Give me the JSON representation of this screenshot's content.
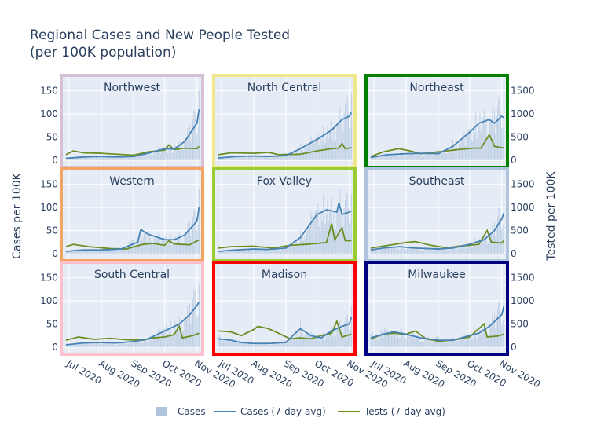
{
  "chart_data": {
    "type": "bar+line",
    "title": [
      "Regional Cases and New People Tested",
      "(per 100K population)"
    ],
    "ylabel_left": "Cases per 100K",
    "ylabel_right": "Tested per 100K",
    "y_left": {
      "range": [
        -12,
        180
      ],
      "ticks": [
        0,
        50,
        100,
        150
      ]
    },
    "y_right": {
      "range": [
        -120,
        1800
      ],
      "ticks": [
        0,
        500,
        1000,
        1500
      ]
    },
    "x": {
      "start": "2020-06-25",
      "end": "2020-11-05",
      "ticks": [
        {
          "date": "2020-07-01",
          "label": "Jul 2020"
        },
        {
          "date": "2020-08-01",
          "label": "Aug 2020"
        },
        {
          "date": "2020-09-01",
          "label": "Sep 2020"
        },
        {
          "date": "2020-10-01",
          "label": "Oct 2020"
        },
        {
          "date": "2020-11-01",
          "label": "Nov 2020"
        }
      ]
    },
    "grid": true,
    "legend": {
      "placement": "bottom",
      "items": [
        {
          "name": "Cases",
          "color": "#b0c4de",
          "kind": "bar"
        },
        {
          "name": "Cases (7-day avg)",
          "color": "#4682b4",
          "kind": "line"
        },
        {
          "name": "Tests (7-day avg)",
          "color": "#6b8e23",
          "kind": "line"
        }
      ]
    },
    "regions": [
      {
        "name": "Northwest",
        "border": "#d8bfd8",
        "cases": [
          [
            "2020-06-28",
            4
          ],
          [
            "2020-07-15",
            7
          ],
          [
            "2020-08-01",
            8
          ],
          [
            "2020-08-15",
            7
          ],
          [
            "2020-09-01",
            8
          ],
          [
            "2020-09-15",
            15
          ],
          [
            "2020-10-01",
            25
          ],
          [
            "2020-10-10",
            24
          ],
          [
            "2020-10-20",
            40
          ],
          [
            "2020-11-01",
            80
          ],
          [
            "2020-11-03",
            110
          ]
        ],
        "tests": [
          [
            "2020-06-28",
            120
          ],
          [
            "2020-07-05",
            200
          ],
          [
            "2020-07-15",
            160
          ],
          [
            "2020-08-01",
            150
          ],
          [
            "2020-08-15",
            130
          ],
          [
            "2020-09-01",
            110
          ],
          [
            "2020-09-15",
            180
          ],
          [
            "2020-10-01",
            220
          ],
          [
            "2020-10-05",
            330
          ],
          [
            "2020-10-10",
            230
          ],
          [
            "2020-10-20",
            260
          ],
          [
            "2020-11-01",
            250
          ],
          [
            "2020-11-03",
            300
          ]
        ]
      },
      {
        "name": "North Central",
        "border": "#f0e68c",
        "cases": [
          [
            "2020-06-28",
            5
          ],
          [
            "2020-07-15",
            8
          ],
          [
            "2020-08-01",
            9
          ],
          [
            "2020-08-15",
            8
          ],
          [
            "2020-09-01",
            10
          ],
          [
            "2020-09-15",
            25
          ],
          [
            "2020-10-01",
            45
          ],
          [
            "2020-10-15",
            65
          ],
          [
            "2020-10-25",
            88
          ],
          [
            "2020-11-01",
            95
          ],
          [
            "2020-11-03",
            103
          ]
        ],
        "tests": [
          [
            "2020-06-28",
            120
          ],
          [
            "2020-07-10",
            160
          ],
          [
            "2020-08-01",
            150
          ],
          [
            "2020-08-15",
            170
          ],
          [
            "2020-08-25",
            120
          ],
          [
            "2020-09-15",
            130
          ],
          [
            "2020-10-01",
            200
          ],
          [
            "2020-10-15",
            250
          ],
          [
            "2020-10-22",
            260
          ],
          [
            "2020-10-25",
            360
          ],
          [
            "2020-10-28",
            250
          ],
          [
            "2020-11-03",
            270
          ]
        ]
      },
      {
        "name": "Northeast",
        "border": "#008000",
        "cases": [
          [
            "2020-06-28",
            6
          ],
          [
            "2020-07-15",
            12
          ],
          [
            "2020-08-01",
            14
          ],
          [
            "2020-08-15",
            15
          ],
          [
            "2020-09-01",
            14
          ],
          [
            "2020-09-15",
            30
          ],
          [
            "2020-10-01",
            60
          ],
          [
            "2020-10-10",
            80
          ],
          [
            "2020-10-20",
            88
          ],
          [
            "2020-10-25",
            80
          ],
          [
            "2020-11-01",
            95
          ],
          [
            "2020-11-03",
            92
          ]
        ],
        "tests": [
          [
            "2020-06-28",
            80
          ],
          [
            "2020-07-10",
            180
          ],
          [
            "2020-07-25",
            250
          ],
          [
            "2020-08-05",
            200
          ],
          [
            "2020-08-15",
            140
          ],
          [
            "2020-09-01",
            180
          ],
          [
            "2020-09-20",
            230
          ],
          [
            "2020-10-05",
            260
          ],
          [
            "2020-10-12",
            260
          ],
          [
            "2020-10-20",
            550
          ],
          [
            "2020-10-25",
            300
          ],
          [
            "2020-11-01",
            270
          ],
          [
            "2020-11-03",
            270
          ]
        ]
      },
      {
        "name": "Western",
        "border": "#f4a460",
        "cases": [
          [
            "2020-06-28",
            5
          ],
          [
            "2020-07-15",
            8
          ],
          [
            "2020-08-01",
            8
          ],
          [
            "2020-08-20",
            10
          ],
          [
            "2020-09-05",
            25
          ],
          [
            "2020-09-08",
            52
          ],
          [
            "2020-09-15",
            42
          ],
          [
            "2020-10-01",
            30
          ],
          [
            "2020-10-10",
            30
          ],
          [
            "2020-10-20",
            40
          ],
          [
            "2020-11-01",
            70
          ],
          [
            "2020-11-03",
            100
          ]
        ],
        "tests": [
          [
            "2020-06-28",
            150
          ],
          [
            "2020-07-05",
            200
          ],
          [
            "2020-07-20",
            150
          ],
          [
            "2020-08-10",
            110
          ],
          [
            "2020-08-25",
            100
          ],
          [
            "2020-09-10",
            200
          ],
          [
            "2020-09-20",
            220
          ],
          [
            "2020-10-01",
            180
          ],
          [
            "2020-10-05",
            280
          ],
          [
            "2020-10-10",
            210
          ],
          [
            "2020-10-25",
            190
          ],
          [
            "2020-11-03",
            300
          ]
        ]
      },
      {
        "name": "Fox Valley",
        "border": "#9acd32",
        "cases": [
          [
            "2020-06-28",
            5
          ],
          [
            "2020-07-15",
            8
          ],
          [
            "2020-08-01",
            10
          ],
          [
            "2020-08-15",
            9
          ],
          [
            "2020-09-01",
            12
          ],
          [
            "2020-09-15",
            35
          ],
          [
            "2020-10-01",
            85
          ],
          [
            "2020-10-10",
            95
          ],
          [
            "2020-10-20",
            90
          ],
          [
            "2020-10-22",
            110
          ],
          [
            "2020-10-25",
            85
          ],
          [
            "2020-11-01",
            90
          ],
          [
            "2020-11-03",
            93
          ]
        ],
        "tests": [
          [
            "2020-06-28",
            120
          ],
          [
            "2020-07-10",
            150
          ],
          [
            "2020-08-01",
            160
          ],
          [
            "2020-08-20",
            120
          ],
          [
            "2020-09-05",
            180
          ],
          [
            "2020-09-20",
            200
          ],
          [
            "2020-10-01",
            220
          ],
          [
            "2020-10-10",
            240
          ],
          [
            "2020-10-15",
            650
          ],
          [
            "2020-10-18",
            300
          ],
          [
            "2020-10-25",
            560
          ],
          [
            "2020-10-28",
            280
          ],
          [
            "2020-11-03",
            280
          ]
        ]
      },
      {
        "name": "Southeast",
        "border": "#b0c4de",
        "cases": [
          [
            "2020-06-28",
            8
          ],
          [
            "2020-07-10",
            12
          ],
          [
            "2020-07-25",
            15
          ],
          [
            "2020-08-10",
            12
          ],
          [
            "2020-09-01",
            10
          ],
          [
            "2020-09-15",
            12
          ],
          [
            "2020-10-01",
            20
          ],
          [
            "2020-10-15",
            30
          ],
          [
            "2020-10-25",
            50
          ],
          [
            "2020-11-01",
            75
          ],
          [
            "2020-11-03",
            88
          ]
        ],
        "tests": [
          [
            "2020-06-28",
            120
          ],
          [
            "2020-07-15",
            180
          ],
          [
            "2020-08-01",
            240
          ],
          [
            "2020-08-10",
            260
          ],
          [
            "2020-08-25",
            180
          ],
          [
            "2020-09-10",
            120
          ],
          [
            "2020-09-20",
            160
          ],
          [
            "2020-10-01",
            180
          ],
          [
            "2020-10-10",
            200
          ],
          [
            "2020-10-18",
            500
          ],
          [
            "2020-10-22",
            250
          ],
          [
            "2020-11-01",
            230
          ],
          [
            "2020-11-03",
            280
          ]
        ]
      },
      {
        "name": "South Central",
        "border": "#ffc0cb",
        "cases": [
          [
            "2020-06-28",
            5
          ],
          [
            "2020-07-15",
            9
          ],
          [
            "2020-08-01",
            10
          ],
          [
            "2020-08-15",
            9
          ],
          [
            "2020-09-01",
            12
          ],
          [
            "2020-09-15",
            18
          ],
          [
            "2020-10-01",
            35
          ],
          [
            "2020-10-15",
            50
          ],
          [
            "2020-10-25",
            70
          ],
          [
            "2020-11-01",
            90
          ],
          [
            "2020-11-03",
            98
          ]
        ],
        "tests": [
          [
            "2020-06-28",
            150
          ],
          [
            "2020-07-10",
            220
          ],
          [
            "2020-07-25",
            170
          ],
          [
            "2020-08-10",
            190
          ],
          [
            "2020-08-25",
            160
          ],
          [
            "2020-09-10",
            150
          ],
          [
            "2020-09-20",
            200
          ],
          [
            "2020-10-01",
            220
          ],
          [
            "2020-10-10",
            270
          ],
          [
            "2020-10-15",
            450
          ],
          [
            "2020-10-18",
            200
          ],
          [
            "2020-10-28",
            250
          ],
          [
            "2020-11-03",
            300
          ]
        ]
      },
      {
        "name": "Madison",
        "border": "#ff0000",
        "cases": [
          [
            "2020-06-28",
            18
          ],
          [
            "2020-07-10",
            15
          ],
          [
            "2020-07-20",
            10
          ],
          [
            "2020-08-01",
            8
          ],
          [
            "2020-08-15",
            8
          ],
          [
            "2020-09-01",
            10
          ],
          [
            "2020-09-10",
            30
          ],
          [
            "2020-09-15",
            40
          ],
          [
            "2020-09-25",
            25
          ],
          [
            "2020-10-05",
            20
          ],
          [
            "2020-10-15",
            35
          ],
          [
            "2020-10-25",
            45
          ],
          [
            "2020-11-01",
            50
          ],
          [
            "2020-11-03",
            65
          ]
        ],
        "tests": [
          [
            "2020-06-28",
            350
          ],
          [
            "2020-07-10",
            330
          ],
          [
            "2020-07-20",
            250
          ],
          [
            "2020-08-01",
            380
          ],
          [
            "2020-08-05",
            450
          ],
          [
            "2020-08-15",
            400
          ],
          [
            "2020-08-25",
            300
          ],
          [
            "2020-09-05",
            180
          ],
          [
            "2020-09-15",
            200
          ],
          [
            "2020-09-25",
            180
          ],
          [
            "2020-10-05",
            250
          ],
          [
            "2020-10-15",
            300
          ],
          [
            "2020-10-20",
            560
          ],
          [
            "2020-10-25",
            220
          ],
          [
            "2020-11-03",
            280
          ]
        ]
      },
      {
        "name": "Milwaukee",
        "border": "#000080",
        "cases": [
          [
            "2020-06-28",
            20
          ],
          [
            "2020-07-10",
            28
          ],
          [
            "2020-07-20",
            33
          ],
          [
            "2020-08-01",
            28
          ],
          [
            "2020-08-15",
            20
          ],
          [
            "2020-09-01",
            15
          ],
          [
            "2020-09-15",
            15
          ],
          [
            "2020-10-01",
            25
          ],
          [
            "2020-10-10",
            30
          ],
          [
            "2020-10-20",
            45
          ],
          [
            "2020-11-01",
            70
          ],
          [
            "2020-11-03",
            88
          ]
        ],
        "tests": [
          [
            "2020-06-28",
            180
          ],
          [
            "2020-07-10",
            280
          ],
          [
            "2020-07-20",
            300
          ],
          [
            "2020-08-01",
            280
          ],
          [
            "2020-08-10",
            350
          ],
          [
            "2020-08-20",
            180
          ],
          [
            "2020-09-01",
            130
          ],
          [
            "2020-09-15",
            150
          ],
          [
            "2020-10-01",
            220
          ],
          [
            "2020-10-15",
            500
          ],
          [
            "2020-10-18",
            220
          ],
          [
            "2020-10-28",
            240
          ],
          [
            "2020-11-03",
            280
          ]
        ]
      }
    ]
  }
}
